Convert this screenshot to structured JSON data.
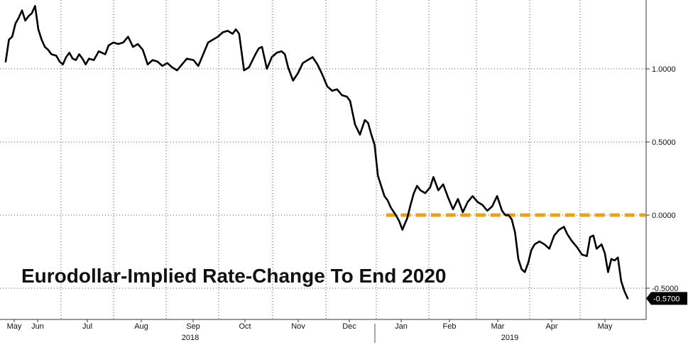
{
  "chart_data": {
    "type": "line",
    "title": "Eurodollar-Implied Rate-Change To End 2020",
    "xlabel": "",
    "ylabel": "",
    "ylim": [
      -0.67,
      1.5
    ],
    "y_ticks": [
      {
        "value": 1.0,
        "label": "1.0000"
      },
      {
        "value": 0.5,
        "label": "0.5000"
      },
      {
        "value": 0.0,
        "label": "0.0000"
      },
      {
        "value": -0.5,
        "label": "-0.5000"
      }
    ],
    "x_tick_labels": [
      "May",
      "Jun",
      "Jul",
      "Aug",
      "Sep",
      "Oct",
      "Nov",
      "Dec",
      "Jan",
      "Feb",
      "Mar",
      "Apr",
      "May"
    ],
    "year_labels": [
      "2018",
      "2019"
    ],
    "last_value_label": "-0.5700",
    "reference_line": {
      "value": 0.0,
      "from": "2018-12-20",
      "color": "#e6a11f"
    },
    "series": [
      {
        "color": "#000000",
        "points": [
          [
            "2018-05-01",
            1.05
          ],
          [
            "2018-05-03",
            1.2
          ],
          [
            "2018-05-05",
            1.22
          ],
          [
            "2018-05-07",
            1.31
          ],
          [
            "2018-05-09",
            1.35
          ],
          [
            "2018-05-11",
            1.4
          ],
          [
            "2018-05-13",
            1.33
          ],
          [
            "2018-05-15",
            1.36
          ],
          [
            "2018-05-17",
            1.38
          ],
          [
            "2018-05-19",
            1.43
          ],
          [
            "2018-05-21",
            1.27
          ],
          [
            "2018-05-23",
            1.2
          ],
          [
            "2018-05-25",
            1.15
          ],
          [
            "2018-05-27",
            1.13
          ],
          [
            "2018-05-29",
            1.1
          ],
          [
            "2018-06-01",
            1.09
          ],
          [
            "2018-06-03",
            1.05
          ],
          [
            "2018-06-05",
            1.03
          ],
          [
            "2018-06-07",
            1.08
          ],
          [
            "2018-06-09",
            1.11
          ],
          [
            "2018-06-11",
            1.07
          ],
          [
            "2018-06-13",
            1.06
          ],
          [
            "2018-06-15",
            1.1
          ],
          [
            "2018-06-17",
            1.07
          ],
          [
            "2018-06-19",
            1.03
          ],
          [
            "2018-06-21",
            1.07
          ],
          [
            "2018-06-24",
            1.06
          ],
          [
            "2018-06-27",
            1.12
          ],
          [
            "2018-07-01",
            1.1
          ],
          [
            "2018-07-03",
            1.16
          ],
          [
            "2018-07-06",
            1.18
          ],
          [
            "2018-07-09",
            1.17
          ],
          [
            "2018-07-12",
            1.18
          ],
          [
            "2018-07-15",
            1.22
          ],
          [
            "2018-07-18",
            1.15
          ],
          [
            "2018-07-21",
            1.17
          ],
          [
            "2018-07-24",
            1.13
          ],
          [
            "2018-07-27",
            1.03
          ],
          [
            "2018-07-30",
            1.06
          ],
          [
            "2018-08-02",
            1.05
          ],
          [
            "2018-08-05",
            1.02
          ],
          [
            "2018-08-08",
            1.04
          ],
          [
            "2018-08-11",
            1.01
          ],
          [
            "2018-08-14",
            0.99
          ],
          [
            "2018-08-17",
            1.03
          ],
          [
            "2018-08-20",
            1.07
          ],
          [
            "2018-08-24",
            1.06
          ],
          [
            "2018-08-27",
            1.02
          ],
          [
            "2018-08-30",
            1.1
          ],
          [
            "2018-09-02",
            1.18
          ],
          [
            "2018-09-05",
            1.2
          ],
          [
            "2018-09-08",
            1.22
          ],
          [
            "2018-09-11",
            1.25
          ],
          [
            "2018-09-14",
            1.26
          ],
          [
            "2018-09-17",
            1.24
          ],
          [
            "2018-09-19",
            1.27
          ],
          [
            "2018-09-21",
            1.24
          ],
          [
            "2018-09-24",
            0.99
          ],
          [
            "2018-09-27",
            1.01
          ],
          [
            "2018-10-01",
            1.1
          ],
          [
            "2018-10-03",
            1.14
          ],
          [
            "2018-10-05",
            1.15
          ],
          [
            "2018-10-08",
            1.0
          ],
          [
            "2018-10-11",
            1.08
          ],
          [
            "2018-10-14",
            1.11
          ],
          [
            "2018-10-17",
            1.12
          ],
          [
            "2018-10-19",
            1.1
          ],
          [
            "2018-10-21",
            1.01
          ],
          [
            "2018-10-24",
            0.92
          ],
          [
            "2018-10-27",
            0.97
          ],
          [
            "2018-10-30",
            1.04
          ],
          [
            "2018-11-02",
            1.06
          ],
          [
            "2018-11-05",
            1.08
          ],
          [
            "2018-11-08",
            1.03
          ],
          [
            "2018-11-11",
            0.96
          ],
          [
            "2018-11-14",
            0.88
          ],
          [
            "2018-11-17",
            0.85
          ],
          [
            "2018-11-20",
            0.86
          ],
          [
            "2018-11-23",
            0.82
          ],
          [
            "2018-11-26",
            0.81
          ],
          [
            "2018-11-28",
            0.78
          ],
          [
            "2018-12-01",
            0.62
          ],
          [
            "2018-12-04",
            0.55
          ],
          [
            "2018-12-07",
            0.65
          ],
          [
            "2018-12-09",
            0.63
          ],
          [
            "2018-12-11",
            0.55
          ],
          [
            "2018-12-13",
            0.48
          ],
          [
            "2018-12-15",
            0.27
          ],
          [
            "2018-12-17",
            0.2
          ],
          [
            "2018-12-19",
            0.13
          ],
          [
            "2018-12-21",
            0.1
          ],
          [
            "2018-12-23",
            0.05
          ],
          [
            "2018-12-26",
            0.0
          ],
          [
            "2018-12-28",
            -0.04
          ],
          [
            "2018-12-30",
            -0.1
          ],
          [
            "2019-01-02",
            -0.02
          ],
          [
            "2019-01-04",
            0.07
          ],
          [
            "2019-01-06",
            0.15
          ],
          [
            "2019-01-08",
            0.2
          ],
          [
            "2019-01-10",
            0.17
          ],
          [
            "2019-01-13",
            0.15
          ],
          [
            "2019-01-16",
            0.19
          ],
          [
            "2019-01-18",
            0.26
          ],
          [
            "2019-01-21",
            0.17
          ],
          [
            "2019-01-24",
            0.21
          ],
          [
            "2019-01-27",
            0.12
          ],
          [
            "2019-01-30",
            0.04
          ],
          [
            "2019-02-02",
            0.11
          ],
          [
            "2019-02-05",
            0.02
          ],
          [
            "2019-02-08",
            0.09
          ],
          [
            "2019-02-11",
            0.13
          ],
          [
            "2019-02-14",
            0.09
          ],
          [
            "2019-02-17",
            0.07
          ],
          [
            "2019-02-20",
            0.03
          ],
          [
            "2019-02-23",
            0.06
          ],
          [
            "2019-02-26",
            0.13
          ],
          [
            "2019-03-01",
            0.03
          ],
          [
            "2019-03-03",
            0.0
          ],
          [
            "2019-03-05",
            0.0
          ],
          [
            "2019-03-07",
            -0.03
          ],
          [
            "2019-03-09",
            -0.12
          ],
          [
            "2019-03-11",
            -0.3
          ],
          [
            "2019-03-13",
            -0.37
          ],
          [
            "2019-03-15",
            -0.39
          ],
          [
            "2019-03-17",
            -0.33
          ],
          [
            "2019-03-19",
            -0.24
          ],
          [
            "2019-03-21",
            -0.2
          ],
          [
            "2019-03-24",
            -0.18
          ],
          [
            "2019-03-27",
            -0.2
          ],
          [
            "2019-03-30",
            -0.23
          ],
          [
            "2019-04-02",
            -0.14
          ],
          [
            "2019-04-05",
            -0.1
          ],
          [
            "2019-04-08",
            -0.08
          ],
          [
            "2019-04-10",
            -0.13
          ],
          [
            "2019-04-13",
            -0.18
          ],
          [
            "2019-04-16",
            -0.22
          ],
          [
            "2019-04-19",
            -0.27
          ],
          [
            "2019-04-22",
            -0.28
          ],
          [
            "2019-04-24",
            -0.15
          ],
          [
            "2019-04-26",
            -0.14
          ],
          [
            "2019-04-28",
            -0.23
          ],
          [
            "2019-05-01",
            -0.2
          ],
          [
            "2019-05-03",
            -0.26
          ],
          [
            "2019-05-05",
            -0.39
          ],
          [
            "2019-05-07",
            -0.3
          ],
          [
            "2019-05-09",
            -0.31
          ],
          [
            "2019-05-11",
            -0.29
          ],
          [
            "2019-05-13",
            -0.45
          ],
          [
            "2019-05-15",
            -0.52
          ],
          [
            "2019-05-17",
            -0.57
          ]
        ]
      }
    ]
  }
}
